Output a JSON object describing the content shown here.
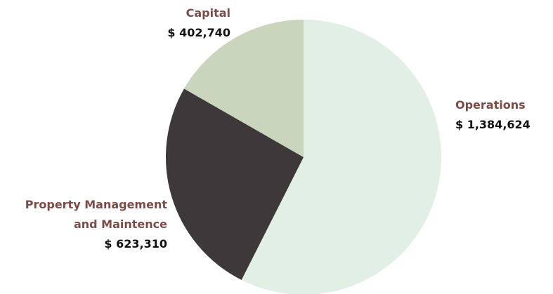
{
  "chart_data": {
    "type": "pie",
    "categories": [
      "Operations",
      "Property Management and Maintence",
      "Capital"
    ],
    "values": [
      1384624,
      623310,
      402740
    ],
    "value_labels": [
      "$ 1,384,624",
      "$ 623,310",
      "$ 402,740"
    ],
    "colors": [
      "#e2efe5",
      "#3d393b",
      "#c9d5bc"
    ]
  }
}
